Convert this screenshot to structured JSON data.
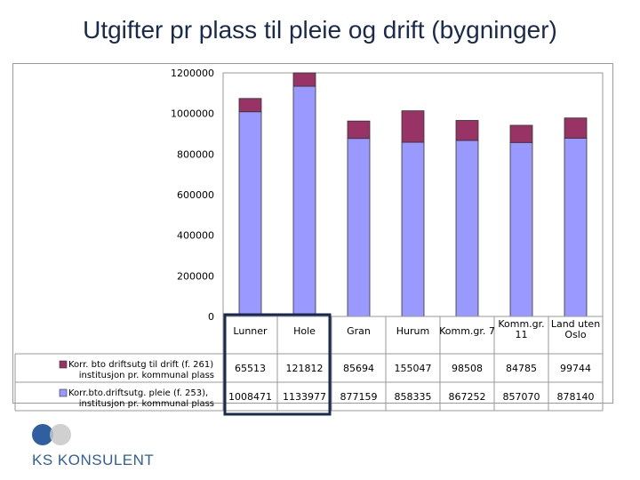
{
  "title": "Utgifter pr plass til pleie og drift (bygninger)",
  "chart_data": {
    "type": "bar",
    "stacked": true,
    "categories": [
      "Lunner",
      "Hole",
      "Gran",
      "Hurum",
      "Komm.gr. 7",
      "Komm.gr. 11",
      "Land uten Oslo"
    ],
    "category_lines": [
      [
        "Lunner"
      ],
      [
        "Hole"
      ],
      [
        "Gran"
      ],
      [
        "Hurum"
      ],
      [
        "Komm.gr. 7"
      ],
      [
        "Komm.gr.",
        "11"
      ],
      [
        "Land uten",
        "Oslo"
      ]
    ],
    "series": [
      {
        "name": "Korr.bto.driftsutg. pleie (f. 253), institusjon pr. kommunal plass",
        "name_lines": [
          "Korr.bto.driftsutg. pleie (f. 253),",
          "institusjon pr. kommunal plass"
        ],
        "values": [
          1008471,
          1133977,
          877159,
          858335,
          867252,
          857070,
          878140
        ],
        "display": [
          "1008471",
          "1133977",
          "877159",
          "858335",
          "867252",
          "857070",
          "878140"
        ],
        "color": "#9999ff"
      },
      {
        "name": "Korr. bto driftsutg til drift (f. 261) institusjon pr. kommunal plass",
        "name_lines": [
          "Korr. bto driftsutg til drift (f. 261)",
          "institusjon pr. kommunal plass"
        ],
        "values": [
          65513,
          121812,
          85694,
          155047,
          98508,
          84785,
          99744
        ],
        "display": [
          "65513",
          "121812",
          "85694",
          "155047",
          "98508",
          "84785",
          "99744"
        ],
        "color": "#993366"
      }
    ],
    "yticks": [
      "1200000",
      "1000000",
      "800000",
      "600000",
      "400000",
      "200000",
      "0"
    ],
    "ylim": [
      0,
      1200000
    ],
    "highlight_color": "#1a2a4f",
    "highlight_category": "Hole",
    "grid": false,
    "legend": "left of data table"
  },
  "logo": {
    "text": "KS KONSULENT",
    "color_dark": "#2f5fa0",
    "color_light": "#c8c8c8"
  }
}
